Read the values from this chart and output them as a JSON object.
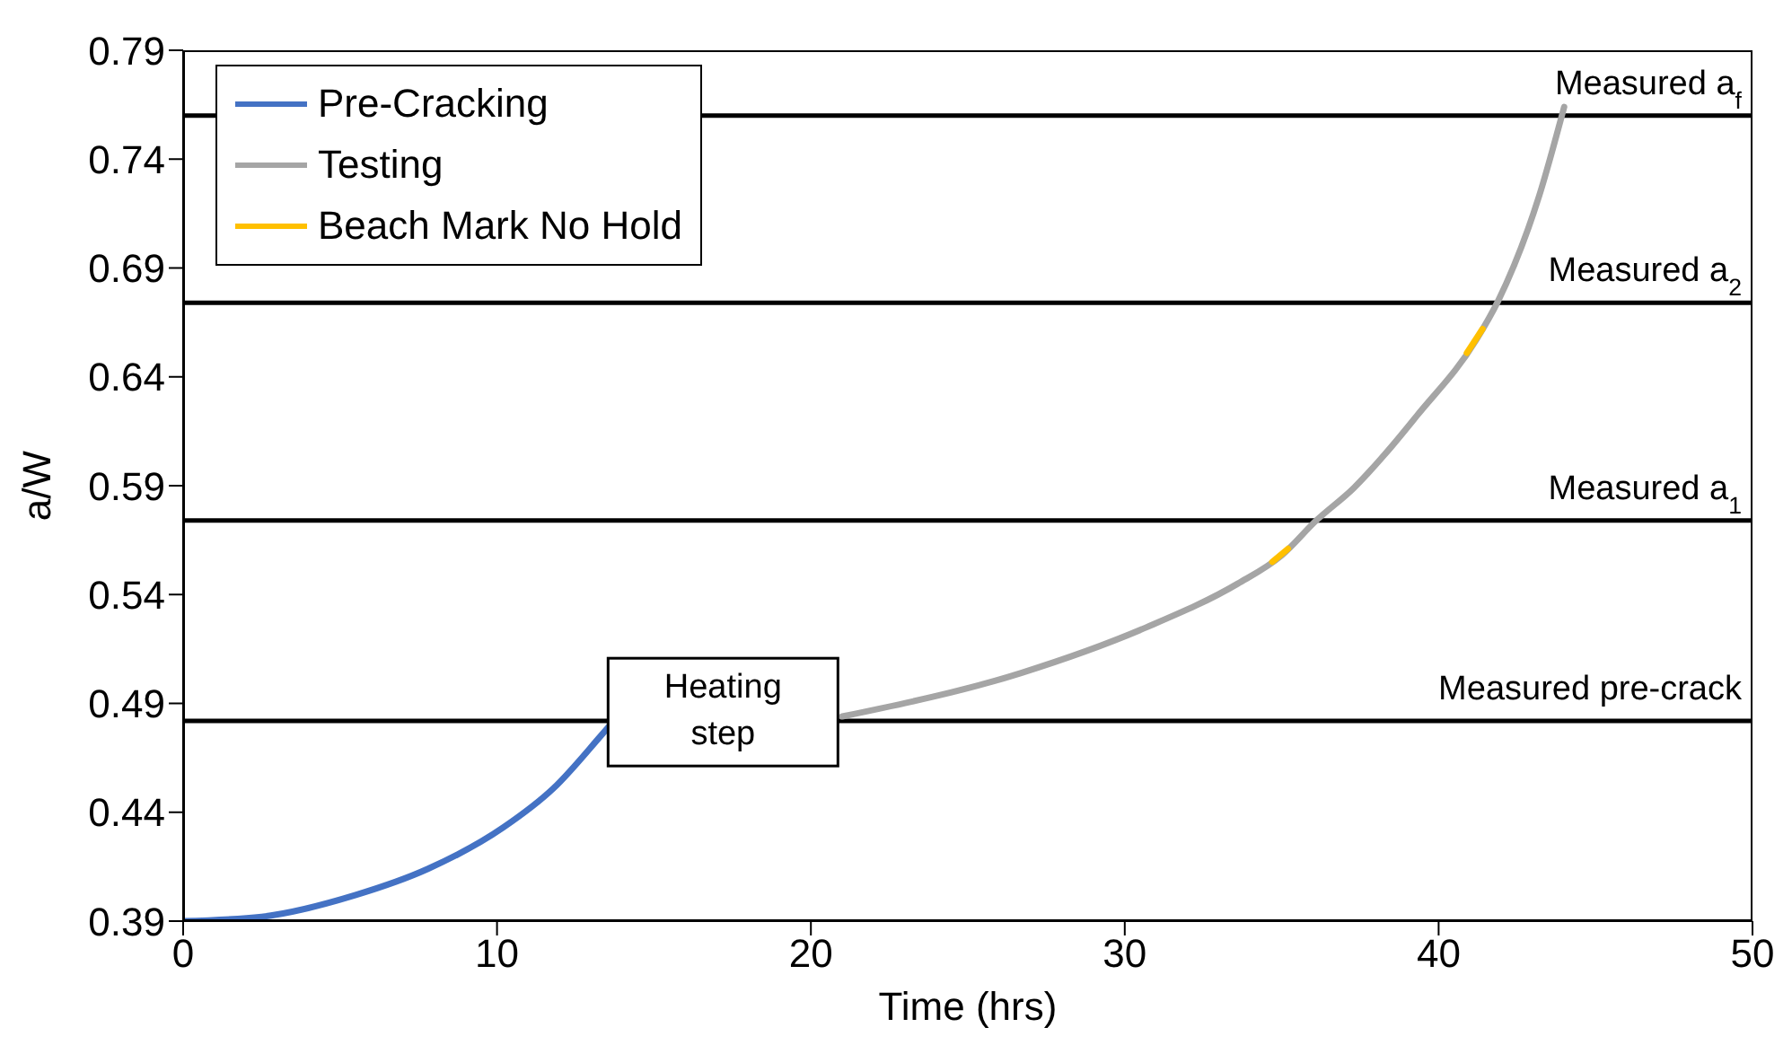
{
  "chart_data": {
    "type": "line",
    "xlabel": "Time (hrs)",
    "ylabel": "a/W",
    "xlim": [
      0,
      50
    ],
    "xticks": [
      0,
      10,
      20,
      30,
      40,
      50
    ],
    "ylim": [
      0.39,
      0.79
    ],
    "yticks": [
      0.39,
      0.44,
      0.49,
      0.54,
      0.59,
      0.64,
      0.69,
      0.74,
      0.79
    ],
    "legend": "top left",
    "marker": "none",
    "line_style": "solid",
    "grid": false,
    "series": [
      {
        "name": "Pre-Cracking",
        "color": "#4472c4",
        "x": [
          0,
          2.5,
          5.5,
          7.8,
          10.2,
          11.8,
          13.3,
          13.6
        ],
        "values": [
          0.39,
          0.392,
          0.402,
          0.414,
          0.433,
          0.451,
          0.475,
          0.48
        ]
      },
      {
        "name": "Testing",
        "color": "#a5a5a5",
        "x": [
          21.0,
          26.7,
          30.7,
          33.6,
          35.0,
          36.1,
          37.3,
          38.5,
          39.3,
          41.2,
          41.9,
          43.2,
          44.0
        ],
        "values": [
          0.484,
          0.504,
          0.525,
          0.545,
          0.558,
          0.574,
          0.589,
          0.608,
          0.622,
          0.657,
          0.675,
          0.723,
          0.764
        ]
      },
      {
        "name": "Beach Mark No Hold",
        "color": "#ffc000",
        "x": [
          34.7,
          35.2,
          35.3,
          40.9,
          41.4
        ],
        "values": [
          0.555,
          0.561,
          null,
          0.651,
          0.662
        ]
      }
    ],
    "ref_lines": [
      {
        "axis": "y",
        "value": 0.482,
        "label": "Measured pre-crack",
        "color": "#000000"
      },
      {
        "axis": "y",
        "value": 0.574,
        "label": "Measured a$_{1}$",
        "color": "#000000"
      },
      {
        "axis": "y",
        "value": 0.674,
        "label": "Measured a$_{2}$",
        "color": "#000000"
      },
      {
        "axis": "y",
        "value": 0.76,
        "label": "Measured a$_{f}$",
        "color": "#000000"
      }
    ],
    "annotations": [
      {
        "text": "Heating step",
        "x": 17.2,
        "y": 0.486
      }
    ]
  }
}
